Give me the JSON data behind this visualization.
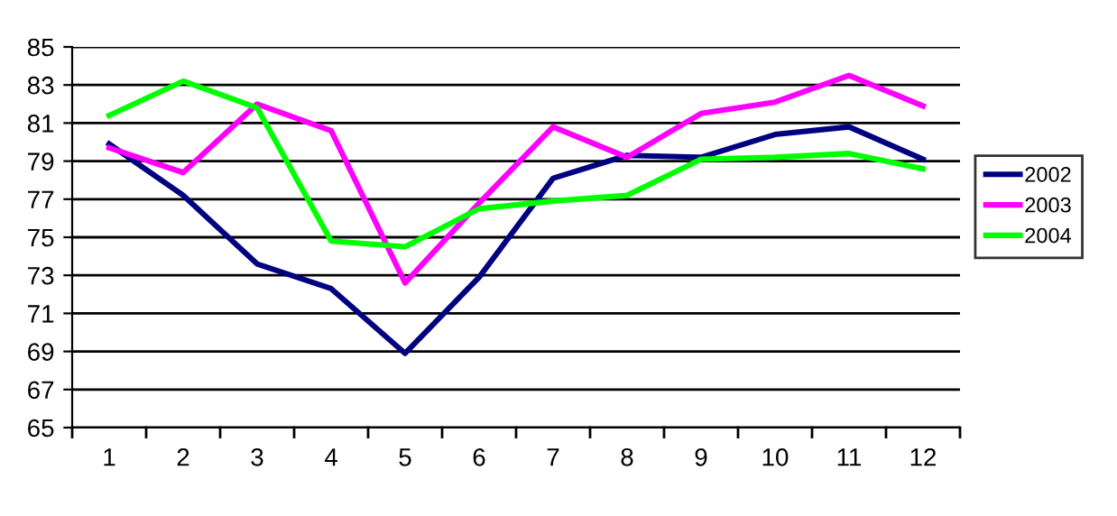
{
  "chart_data": {
    "type": "line",
    "categories": [
      "1",
      "2",
      "3",
      "4",
      "5",
      "6",
      "7",
      "8",
      "9",
      "10",
      "11",
      "12"
    ],
    "series": [
      {
        "name": "2002",
        "color": "#000080",
        "values": [
          79.9,
          77.2,
          73.6,
          72.3,
          68.9,
          72.9,
          78.1,
          79.3,
          79.2,
          80.4,
          80.8,
          79.1
        ]
      },
      {
        "name": "2003",
        "color": "#ff00ff",
        "values": [
          79.7,
          78.4,
          82.0,
          80.6,
          72.6,
          76.8,
          80.8,
          79.2,
          81.5,
          82.1,
          83.5,
          81.9
        ]
      },
      {
        "name": "2004",
        "color": "#00ff00",
        "values": [
          81.4,
          83.2,
          81.8,
          74.8,
          74.5,
          76.5,
          76.9,
          77.2,
          79.1,
          79.2,
          79.4,
          78.6
        ]
      }
    ],
    "ylim": [
      65,
      85
    ],
    "yticks": [
      65,
      67,
      69,
      71,
      73,
      75,
      77,
      79,
      81,
      83,
      85
    ],
    "grid": "y",
    "legend": "right",
    "marker": "none",
    "line_style": "solid"
  }
}
